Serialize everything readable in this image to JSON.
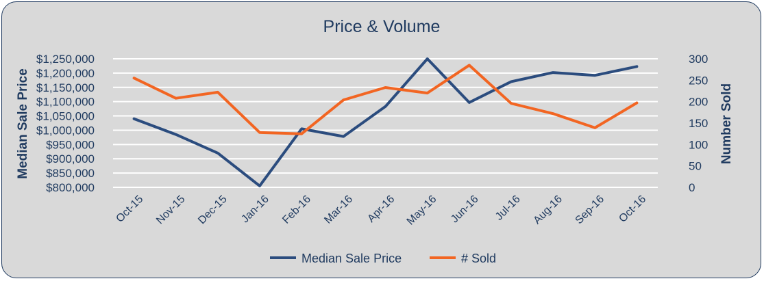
{
  "chart_data": {
    "type": "line",
    "title": "Price & Volume",
    "categories": [
      "Oct-15",
      "Nov-15",
      "Dec-15",
      "Jan-16",
      "Feb-16",
      "Mar-16",
      "Apr-16",
      "May-16",
      "Jun-16",
      "Jul-16",
      "Aug-16",
      "Sep-16",
      "Oct-16"
    ],
    "ylabel": "Median Sale Price",
    "y2label": "Number Sold",
    "ylim": [
      800000,
      1250000
    ],
    "y2lim": [
      0,
      300
    ],
    "yticks": [
      "$1,250,000",
      "$1,200,000",
      "$1,150,000",
      "$1,100,000",
      "$1,050,000",
      "$1,000,000",
      "$950,000",
      "$900,000",
      "$850,000",
      "$800,000"
    ],
    "y2ticks": [
      "300",
      "250",
      "200",
      "150",
      "100",
      "50",
      "0"
    ],
    "grid": true,
    "legend": "bottom",
    "series": [
      {
        "name": "Median Sale Price",
        "axis": "left",
        "color": "#2b4c7e",
        "values": [
          1040000,
          985000,
          920000,
          805000,
          1005000,
          978000,
          1083000,
          1250000,
          1097000,
          1170000,
          1202000,
          1192000,
          1223000
        ]
      },
      {
        "name": "# Sold",
        "axis": "right",
        "color": "#f26522",
        "values": [
          255,
          208,
          222,
          128,
          125,
          204,
          233,
          220,
          285,
          196,
          172,
          139,
          197
        ]
      }
    ]
  }
}
